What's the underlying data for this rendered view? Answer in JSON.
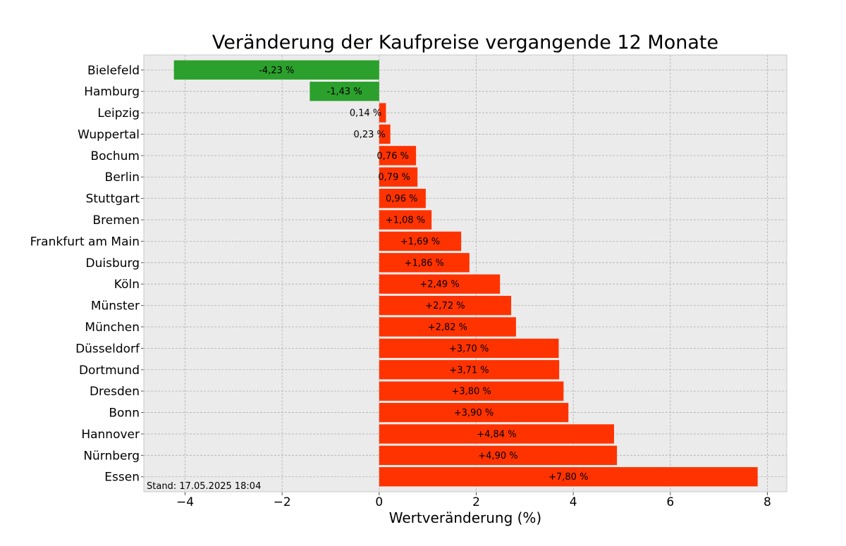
{
  "chart_data": {
    "type": "bar",
    "orientation": "horizontal",
    "title": "Veränderung der Kaufpreise vergangende 12 Monate",
    "xlabel": "Wertveränderung (%)",
    "ylabel": "",
    "xlim": [
      -4.85,
      8.4
    ],
    "xticks": [
      -4,
      -2,
      0,
      2,
      4,
      6,
      8
    ],
    "xtick_labels": [
      "−4",
      "−2",
      "0",
      "2",
      "4",
      "6",
      "8"
    ],
    "grid": true,
    "categories": [
      "Bielefeld",
      "Hamburg",
      "Leipzig",
      "Wuppertal",
      "Bochum",
      "Berlin",
      "Stuttgart",
      "Bremen",
      "Frankfurt am Main",
      "Duisburg",
      "Köln",
      "Münster",
      "München",
      "Düsseldorf",
      "Dortmund",
      "Dresden",
      "Bonn",
      "Hannover",
      "Nürnberg",
      "Essen"
    ],
    "values": [
      -4.23,
      -1.43,
      0.14,
      0.23,
      0.76,
      0.79,
      0.96,
      1.08,
      1.69,
      1.86,
      2.49,
      2.72,
      2.82,
      3.7,
      3.71,
      3.8,
      3.9,
      4.84,
      4.9,
      7.8
    ],
    "value_labels": [
      "-4,23 %",
      "-1,43 %",
      "0,14 %",
      "0,23 %",
      "0,76 %",
      "0,79 %",
      "0,96 %",
      "+1,08 %",
      "+1,69 %",
      "+1,86 %",
      "+2,49 %",
      "+2,72 %",
      "+2,82 %",
      "+3,70 %",
      "+3,71 %",
      "+3,80 %",
      "+3,90 %",
      "+4,84 %",
      "+4,90 %",
      "+7,80 %"
    ],
    "colors": {
      "negative": "#2ca02c",
      "positive": "#ff3300",
      "plot_background": "#ebebeb",
      "grid": "#b0b0b0"
    },
    "footnote": "Stand: 17.05.2025 18:04"
  }
}
